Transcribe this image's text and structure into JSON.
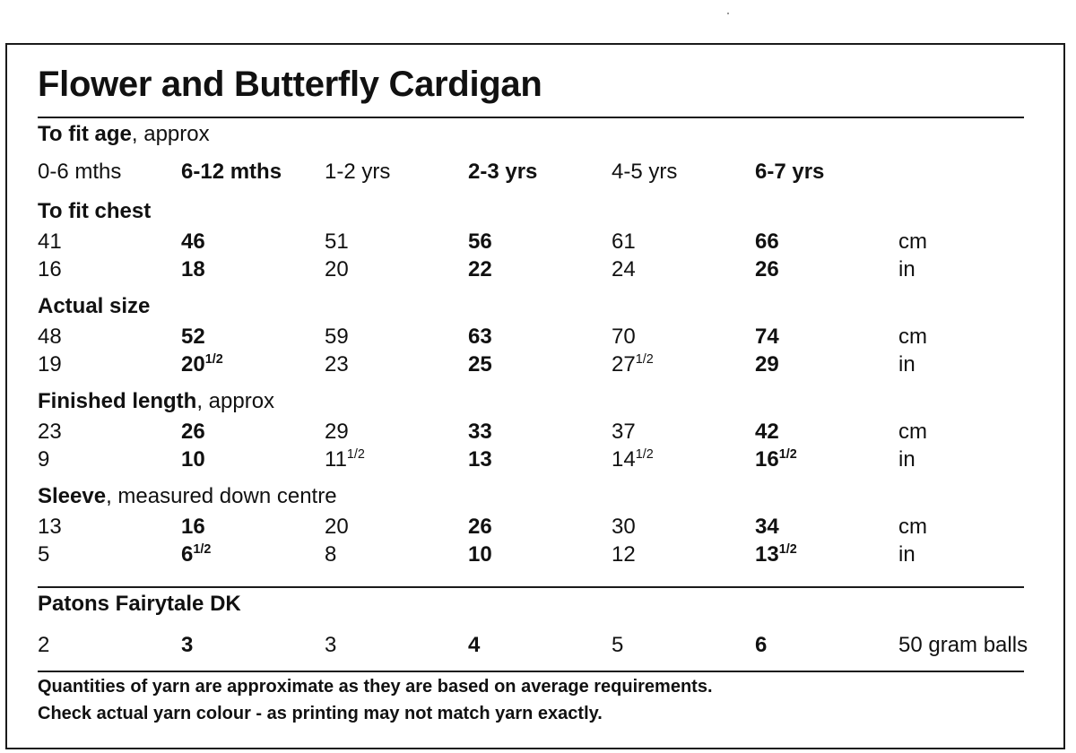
{
  "title": "Flower and Butterfly Cardigan",
  "sections": {
    "age": {
      "label_bold": "To fit age",
      "label_rest": ", approx",
      "values": [
        "0-6 mths",
        "6-12 mths",
        "1-2 yrs",
        "2-3 yrs",
        "4-5 yrs",
        "6-7 yrs"
      ]
    },
    "chest": {
      "label_bold": "To fit chest",
      "label_rest": "",
      "cm": [
        "41",
        "46",
        "51",
        "56",
        "61",
        "66"
      ],
      "cm_unit": "cm",
      "in": [
        "16",
        "18",
        "20",
        "22",
        "24",
        "26"
      ],
      "in_unit": "in"
    },
    "actual": {
      "label_bold": "Actual size",
      "label_rest": "",
      "cm": [
        "48",
        "52",
        "59",
        "63",
        "70",
        "74"
      ],
      "cm_unit": "cm",
      "in": [
        "19",
        "20½",
        "23",
        "25",
        "27½",
        "29"
      ],
      "in_unit": "in"
    },
    "length": {
      "label_bold": "Finished length",
      "label_rest": ", approx",
      "cm": [
        "23",
        "26",
        "29",
        "33",
        "37",
        "42"
      ],
      "cm_unit": "cm",
      "in": [
        "9",
        "10",
        "11½",
        "13",
        "14½",
        "16½"
      ],
      "in_unit": "in"
    },
    "sleeve": {
      "label_bold": "Sleeve",
      "label_rest": ", measured down centre",
      "cm": [
        "13",
        "16",
        "20",
        "26",
        "30",
        "34"
      ],
      "cm_unit": "cm",
      "in": [
        "5",
        "6½",
        "8",
        "10",
        "12",
        "13½"
      ],
      "in_unit": "in"
    },
    "yarn": {
      "label_bold": "Patons Fairytale DK",
      "values": [
        "2",
        "3",
        "3",
        "4",
        "5",
        "6"
      ],
      "unit": "50 gram balls"
    }
  },
  "footer": {
    "line1": "Quantities of yarn are approximate as they are based on average requirements.",
    "line2": "Check actual yarn colour - as printing may not match yarn exactly."
  }
}
